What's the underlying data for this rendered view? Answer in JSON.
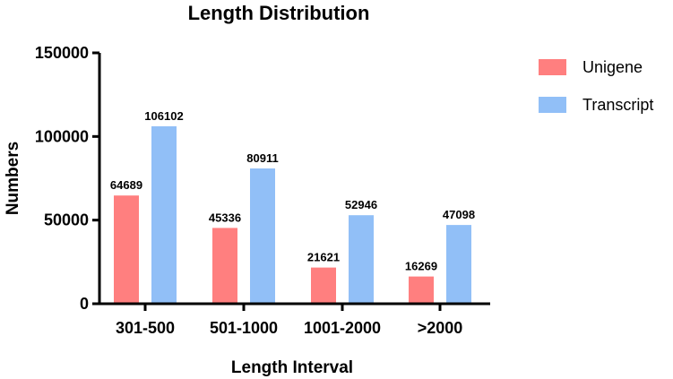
{
  "chart_data": {
    "type": "bar",
    "title": "Length Distribution",
    "xlabel": "Length Interval",
    "ylabel": "Numbers",
    "categories": [
      "301-500",
      "501-1000",
      "1001-2000",
      ">2000"
    ],
    "series": [
      {
        "name": "Unigene",
        "color": "#ff7f7f",
        "values": [
          64689,
          45336,
          21621,
          16269
        ]
      },
      {
        "name": "Transcript",
        "color": "#91bff7",
        "values": [
          106102,
          80911,
          52946,
          47098
        ]
      }
    ],
    "ylim": [
      0,
      150000
    ],
    "yticks": [
      0,
      50000,
      100000,
      150000
    ],
    "ytick_labels": [
      "0",
      "50000",
      "100000",
      "150000"
    ],
    "data_labels": {
      "Unigene": [
        "64689",
        "45336",
        "21621",
        "16269"
      ],
      "Transcript": [
        "106102",
        "80911",
        "52946",
        "47098"
      ]
    },
    "grid": false,
    "legend_position": "right"
  }
}
